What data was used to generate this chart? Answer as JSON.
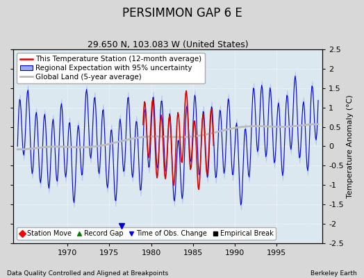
{
  "title": "PERSIMMON GAP 6 E",
  "subtitle": "29.650 N, 103.083 W (United States)",
  "ylabel": "Temperature Anomaly (°C)",
  "xlabel_note": "Data Quality Controlled and Aligned at Breakpoints",
  "xlabel_credit": "Berkeley Earth",
  "ylim": [
    -2.5,
    2.5
  ],
  "xlim": [
    1963.5,
    2000.5
  ],
  "yticks": [
    -2.5,
    -2,
    -1.5,
    -1,
    -0.5,
    0,
    0.5,
    1,
    1.5,
    2,
    2.5
  ],
  "xticks": [
    1970,
    1975,
    1980,
    1985,
    1990,
    1995
  ],
  "xtick_labels": [
    "1970",
    "1975",
    "1980",
    "1985",
    "1990",
    "1995"
  ],
  "bg_color": "#d8d8d8",
  "plot_bg_color": "#dce8f0",
  "regional_color": "#0000dd",
  "regional_shade_color": "#99aaee",
  "station_color": "#dd0000",
  "global_color": "#bbbbbb",
  "obs_change_year": 1976.5,
  "title_fontsize": 12,
  "subtitle_fontsize": 9,
  "legend_fontsize": 7.5,
  "tick_fontsize": 8
}
